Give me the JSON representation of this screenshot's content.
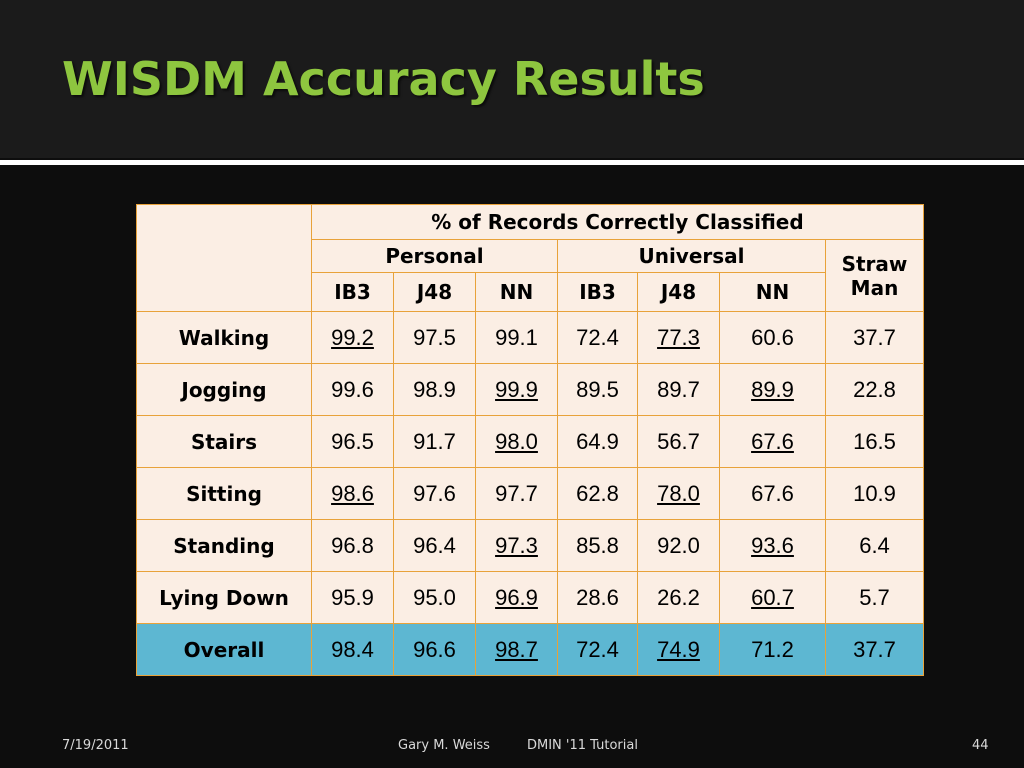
{
  "slide": {
    "title": "WISDM Accuracy Results"
  },
  "table": {
    "header": {
      "group_title": "% of Records Correctly Classified",
      "personal": "Personal",
      "universal": "Universal",
      "straw_line1": "Straw",
      "straw_line2": "Man",
      "algorithms": [
        "IB3",
        "J48",
        "NN",
        "IB3",
        "J48",
        "NN"
      ]
    },
    "rows": [
      {
        "label": "Walking",
        "values": [
          "99.2",
          "97.5",
          "99.1",
          "72.4",
          "77.3",
          "60.6",
          "37.7"
        ],
        "underlined": [
          0,
          4
        ]
      },
      {
        "label": "Jogging",
        "values": [
          "99.6",
          "98.9",
          "99.9",
          "89.5",
          "89.7",
          "89.9",
          "22.8"
        ],
        "underlined": [
          2,
          5
        ]
      },
      {
        "label": "Stairs",
        "values": [
          "96.5",
          "91.7",
          "98.0",
          "64.9",
          "56.7",
          "67.6",
          "16.5"
        ],
        "underlined": [
          2,
          5
        ]
      },
      {
        "label": "Sitting",
        "values": [
          "98.6",
          "97.6",
          "97.7",
          "62.8",
          "78.0",
          "67.6",
          "10.9"
        ],
        "underlined": [
          0,
          4
        ]
      },
      {
        "label": "Standing",
        "values": [
          "96.8",
          "96.4",
          "97.3",
          "85.8",
          "92.0",
          "93.6",
          "6.4"
        ],
        "underlined": [
          2,
          5
        ]
      },
      {
        "label": "Lying Down",
        "values": [
          "95.9",
          "95.0",
          "96.9",
          "28.6",
          "26.2",
          "60.7",
          "5.7"
        ],
        "underlined": [
          2,
          5
        ]
      },
      {
        "label": "Overall",
        "values": [
          "98.4",
          "96.6",
          "98.7",
          "72.4",
          "74.9",
          "71.2",
          "37.7"
        ],
        "underlined": [
          2,
          4
        ]
      }
    ]
  },
  "footer": {
    "date": "7/19/2011",
    "author": "Gary M. Weiss",
    "event": "DMIN '11 Tutorial",
    "page": "44"
  },
  "colors": {
    "title": "#8ec63f",
    "cell_background": "#fbeee4",
    "overall_row": "#5db7d2",
    "cell_border": "#e8a23a"
  }
}
